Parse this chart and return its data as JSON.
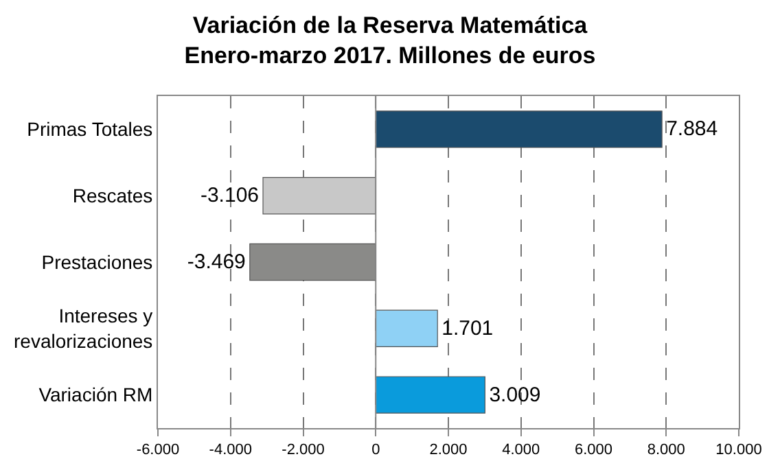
{
  "chart_data": {
    "type": "bar",
    "orientation": "horizontal",
    "title": "Variación de la Reserva Matemática\nEnero-marzo 2017. Millones de euros",
    "categories": [
      "Primas Totales",
      "Rescates",
      "Prestaciones",
      "Intereses y\nrevalorizaciones",
      "Variación RM"
    ],
    "values": [
      7884,
      -3106,
      -3469,
      1701,
      3009
    ],
    "value_labels": [
      "7.884",
      "-3.106",
      "-3.469",
      "1.701",
      "3.009"
    ],
    "colors": [
      "#1b4b6e",
      "#c8c8c8",
      "#8a8a88",
      "#8fd1f5",
      "#0a9bdc"
    ],
    "xlim": [
      -6000,
      10000
    ],
    "xticks": [
      {
        "value": -6000,
        "label": "-6.000"
      },
      {
        "value": -4000,
        "label": "-4.000"
      },
      {
        "value": -2000,
        "label": "-2.000"
      },
      0,
      {
        "value": 2000,
        "label": "2.000"
      },
      {
        "value": 4000,
        "label": "4.000"
      },
      {
        "value": 6000,
        "label": "6.000"
      },
      {
        "value": 8000,
        "label": "8.000"
      },
      {
        "value": 10000,
        "label": "10.000"
      }
    ],
    "grid": "x"
  }
}
